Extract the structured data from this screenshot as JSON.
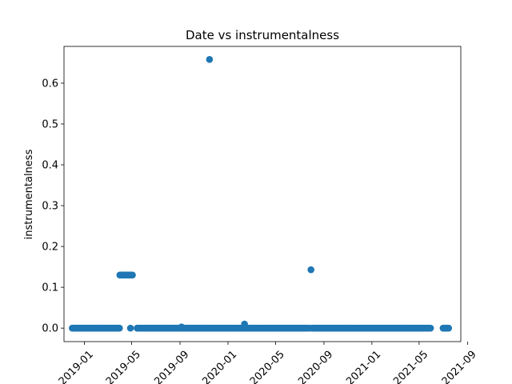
{
  "chart_data": {
    "type": "scatter",
    "title": "Date vs instrumentalness",
    "xlabel": "",
    "ylabel": "instrumentalness",
    "xlim": [
      "2018-11-10",
      "2021-08-15"
    ],
    "ylim": [
      -0.033,
      0.69
    ],
    "grid": false,
    "legend": "none",
    "point_color": "#1f77b4",
    "x_ticks": [
      "2019-01",
      "2019-05",
      "2019-09",
      "2020-01",
      "2020-05",
      "2020-09",
      "2021-01",
      "2021-05",
      "2021-09"
    ],
    "y_ticks": [
      "0.0",
      "0.1",
      "0.2",
      "0.3",
      "0.4",
      "0.5",
      "0.6"
    ],
    "dense_segments": [
      {
        "start": "2018-12-01",
        "end": "2019-03-31",
        "y": 0.0
      },
      {
        "start": "2019-05-15",
        "end": "2019-08-20",
        "y": 0.0
      },
      {
        "start": "2019-08-20",
        "end": "2019-12-31",
        "y": 0.0
      },
      {
        "start": "2020-01-01",
        "end": "2020-07-25",
        "y": 0.0
      },
      {
        "start": "2020-08-01",
        "end": "2021-05-31",
        "y": 0.0
      },
      {
        "start": "2021-07-01",
        "end": "2021-07-15",
        "y": 0.0
      },
      {
        "start": "2019-04-01",
        "end": "2019-05-04",
        "y": 0.13
      }
    ],
    "points": [
      {
        "x": "2019-04-28",
        "y": 0.0
      },
      {
        "x": "2019-09-05",
        "y": 0.003
      },
      {
        "x": "2019-11-15",
        "y": 0.658
      },
      {
        "x": "2020-02-12",
        "y": 0.01
      },
      {
        "x": "2020-07-30",
        "y": 0.143
      },
      {
        "x": "2021-07-03",
        "y": 0.0
      },
      {
        "x": "2021-07-12",
        "y": 0.0
      }
    ]
  }
}
